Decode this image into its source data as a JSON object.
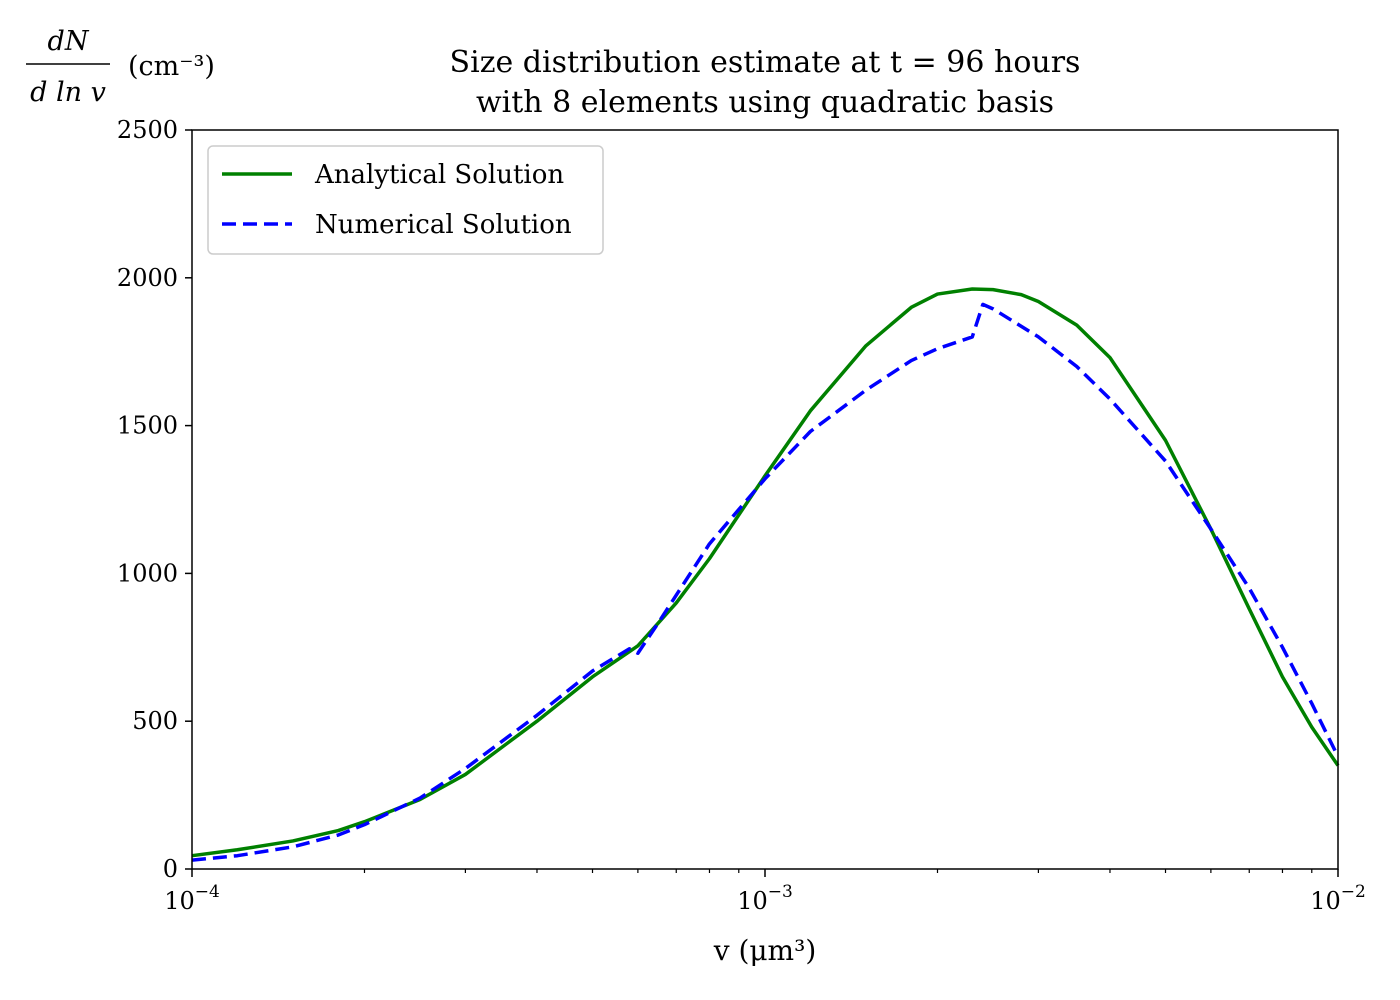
{
  "chart_data": {
    "type": "line",
    "title": [
      "Size distribution estimate at t = 96 hours",
      "with 8 elements using quadratic basis"
    ],
    "xlabel": "v (μm³)",
    "ylabel": {
      "numerator": "dN",
      "denominator": "d ln v",
      "unit": "(cm⁻³)"
    },
    "x_scale": "log",
    "xlim": [
      0.0001,
      0.01
    ],
    "ylim": [
      0,
      2500
    ],
    "x_ticks": [
      {
        "value": 0.0001,
        "mantissa": "10",
        "exponent": "−4"
      },
      {
        "value": 0.001,
        "mantissa": "10",
        "exponent": "−3"
      },
      {
        "value": 0.01,
        "mantissa": "10",
        "exponent": "−2"
      }
    ],
    "y_ticks": [
      0,
      500,
      1000,
      1500,
      2000,
      2500
    ],
    "legend_position": "upper-left",
    "series": [
      {
        "name": "Analytical Solution",
        "color": "#008000",
        "style": "solid",
        "x": [
          0.0001,
          0.00012,
          0.00015,
          0.00018,
          0.0002,
          0.00025,
          0.0003,
          0.0004,
          0.0005,
          0.0006,
          0.0007,
          0.0008,
          0.001,
          0.0012,
          0.0015,
          0.0018,
          0.002,
          0.0023,
          0.0025,
          0.0028,
          0.003,
          0.0035,
          0.004,
          0.005,
          0.006,
          0.007,
          0.008,
          0.009,
          0.01
        ],
        "y": [
          45,
          65,
          95,
          130,
          160,
          235,
          320,
          500,
          650,
          755,
          900,
          1050,
          1330,
          1550,
          1770,
          1900,
          1945,
          1962,
          1960,
          1943,
          1920,
          1840,
          1730,
          1450,
          1150,
          880,
          650,
          480,
          350
        ]
      },
      {
        "name": "Numerical Solution",
        "color": "#0000ff",
        "style": "dashed",
        "x": [
          0.0001,
          0.00012,
          0.00015,
          0.00018,
          0.0002,
          0.00025,
          0.0003,
          0.0004,
          0.0005,
          0.00058,
          0.0006,
          0.00065,
          0.0008,
          0.001,
          0.0012,
          0.0015,
          0.0018,
          0.002,
          0.0023,
          0.0024,
          0.0025,
          0.003,
          0.0035,
          0.004,
          0.005,
          0.006,
          0.007,
          0.008,
          0.009,
          0.01
        ],
        "y": [
          30,
          45,
          75,
          115,
          150,
          240,
          340,
          520,
          670,
          745,
          730,
          830,
          1100,
          1320,
          1480,
          1620,
          1720,
          1760,
          1800,
          1910,
          1895,
          1800,
          1700,
          1590,
          1380,
          1150,
          950,
          750,
          560,
          380
        ]
      }
    ]
  }
}
